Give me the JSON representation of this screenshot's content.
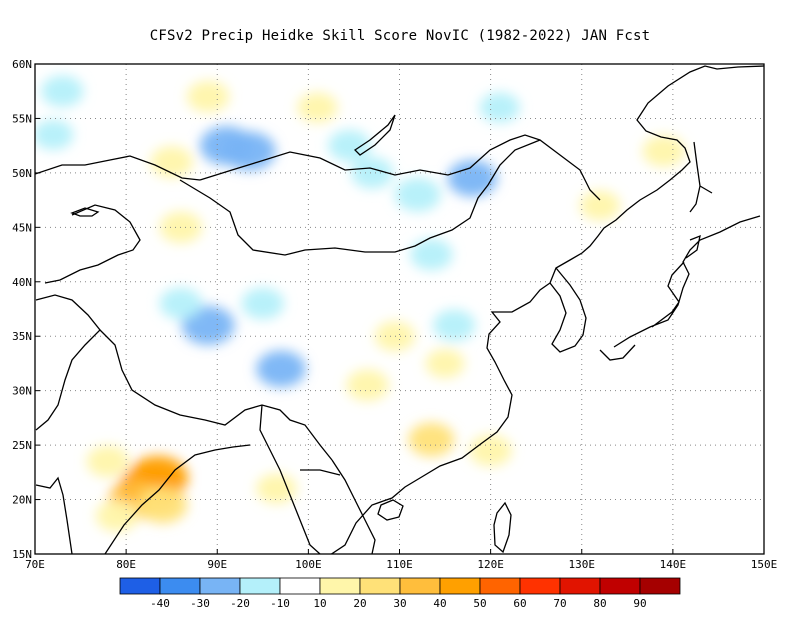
{
  "title": "CFSv2 Precip Heidke Skill Score NovIC (1982-2022) JAN Fcst",
  "map": {
    "lon_range": [
      70,
      150
    ],
    "lat_range": [
      15,
      60
    ],
    "lon_ticks": [
      "70E",
      "80E",
      "90E",
      "100E",
      "110E",
      "120E",
      "130E",
      "140E",
      "150E"
    ],
    "lat_ticks": [
      "15N",
      "20N",
      "25N",
      "30N",
      "35N",
      "40N",
      "45N",
      "50N",
      "55N",
      "60N"
    ],
    "grid": "dotted"
  },
  "colorbar": {
    "colors": [
      "#1e5fe6",
      "#3c8cf0",
      "#78b4f5",
      "#b4f0fa",
      "#ffffff",
      "#fff6aa",
      "#ffe178",
      "#ffbe3c",
      "#ffa000",
      "#ff6400",
      "#ff3200",
      "#e11400",
      "#c00000",
      "#a50000"
    ],
    "labels": [
      "-40",
      "-30",
      "-20",
      "-10",
      "10",
      "20",
      "30",
      "40",
      "50",
      "60",
      "70",
      "80",
      "90"
    ]
  },
  "chart_data": {
    "type": "heatmap",
    "title": "CFSv2 Precip Heidke Skill Score NovIC (1982-2022) JAN Fcst",
    "xlim": [
      70,
      150
    ],
    "ylim": [
      15,
      60
    ],
    "x_ticks": [
      "70E",
      "80E",
      "90E",
      "100E",
      "110E",
      "120E",
      "130E",
      "140E",
      "150E"
    ],
    "y_ticks": [
      "15N",
      "20N",
      "25N",
      "30N",
      "35N",
      "40N",
      "45N",
      "50N",
      "55N",
      "60N"
    ],
    "levels": [
      -40,
      -30,
      -20,
      -10,
      10,
      20,
      30,
      40,
      50,
      60,
      70,
      80,
      90
    ],
    "features": [
      {
        "lon": 82.5,
        "lat": 21.0,
        "value": 50
      },
      {
        "lon": 83.5,
        "lat": 22.0,
        "value": 40
      },
      {
        "lon": 81.0,
        "lat": 20.0,
        "value": 30
      },
      {
        "lon": 84.0,
        "lat": 19.5,
        "value": 25
      },
      {
        "lon": 79.0,
        "lat": 18.5,
        "value": 15
      },
      {
        "lon": 78.0,
        "lat": 23.5,
        "value": 15
      },
      {
        "lon": 73.0,
        "lat": 57.5,
        "value": -15
      },
      {
        "lon": 72.0,
        "lat": 53.5,
        "value": -12
      },
      {
        "lon": 91.0,
        "lat": 52.5,
        "value": -30
      },
      {
        "lon": 93.5,
        "lat": 52.0,
        "value": -30
      },
      {
        "lon": 104.5,
        "lat": 52.5,
        "value": -15
      },
      {
        "lon": 112.0,
        "lat": 48.0,
        "value": -20
      },
      {
        "lon": 118.0,
        "lat": 49.5,
        "value": -25
      },
      {
        "lon": 107.0,
        "lat": 50.0,
        "value": -15
      },
      {
        "lon": 89.0,
        "lat": 36.0,
        "value": -30
      },
      {
        "lon": 86.0,
        "lat": 38.0,
        "value": -15
      },
      {
        "lon": 97.0,
        "lat": 32.0,
        "value": -25
      },
      {
        "lon": 95.0,
        "lat": 38.0,
        "value": -15
      },
      {
        "lon": 113.5,
        "lat": 42.5,
        "value": -15
      },
      {
        "lon": 116.0,
        "lat": 36.0,
        "value": -15
      },
      {
        "lon": 121.0,
        "lat": 56.0,
        "value": -12
      },
      {
        "lon": 101.0,
        "lat": 56.0,
        "value": 12
      },
      {
        "lon": 89.0,
        "lat": 57.0,
        "value": 15
      },
      {
        "lon": 85.0,
        "lat": 51.0,
        "value": 15
      },
      {
        "lon": 86.0,
        "lat": 45.0,
        "value": 15
      },
      {
        "lon": 139.0,
        "lat": 52.0,
        "value": 15
      },
      {
        "lon": 132.0,
        "lat": 47.0,
        "value": 12
      },
      {
        "lon": 113.5,
        "lat": 25.5,
        "value": 20
      },
      {
        "lon": 106.5,
        "lat": 30.5,
        "value": 15
      },
      {
        "lon": 109.5,
        "lat": 35.0,
        "value": 12
      },
      {
        "lon": 96.5,
        "lat": 21.0,
        "value": 12
      },
      {
        "lon": 115.0,
        "lat": 32.5,
        "value": 10
      },
      {
        "lon": 120.0,
        "lat": 24.5,
        "value": 15
      }
    ]
  }
}
